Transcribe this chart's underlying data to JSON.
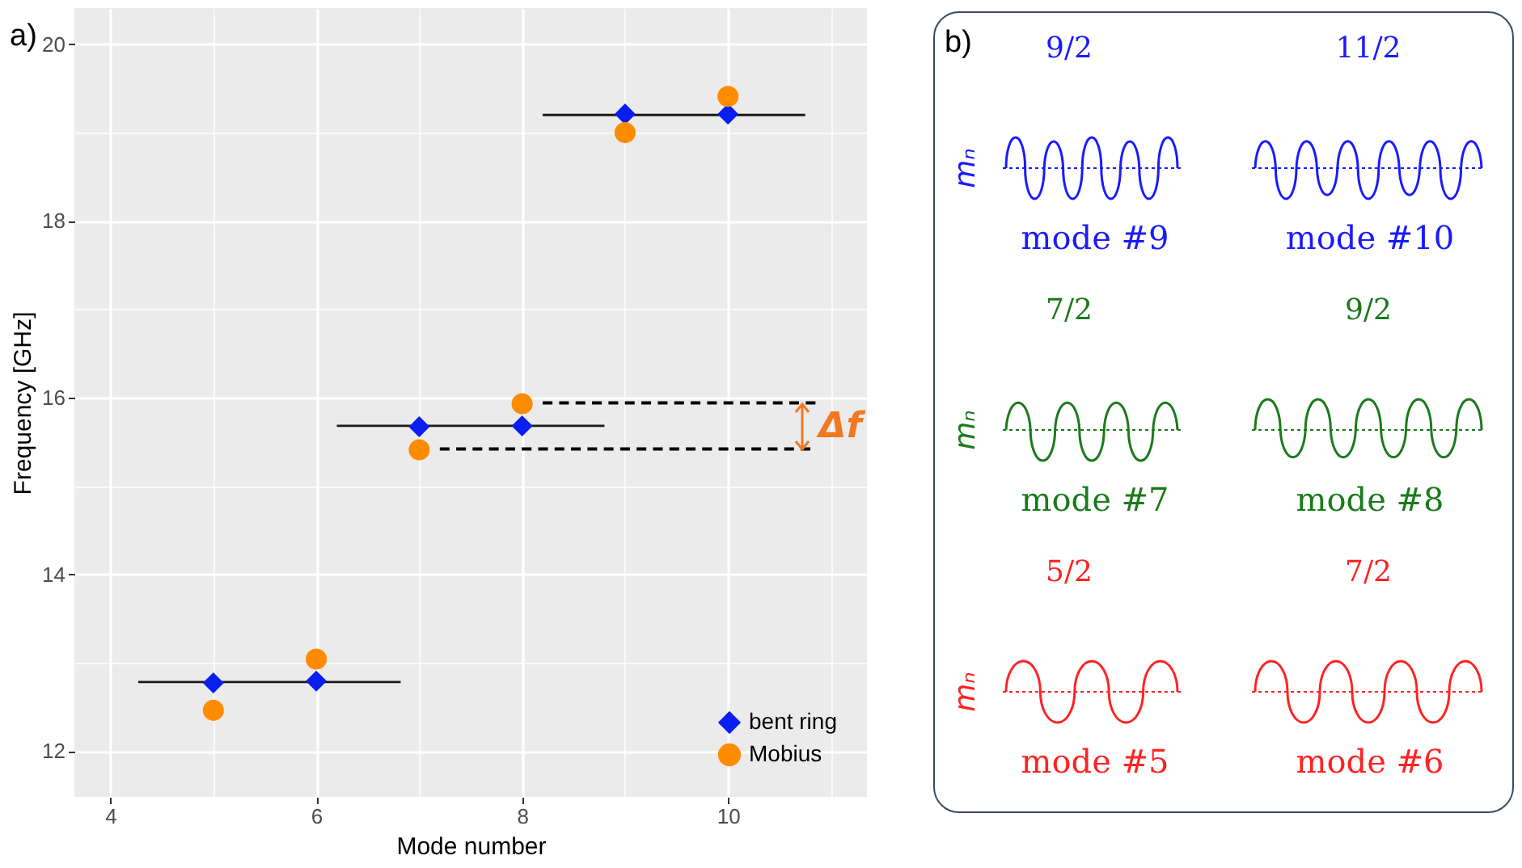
{
  "chart_data": [
    {
      "type": "scatter",
      "title": "a)",
      "xlabel": "Mode number",
      "ylabel": "Frequency [GHz]",
      "xlim": [
        3.65,
        11.35
      ],
      "ylim": [
        11.48,
        20.41
      ],
      "xticks": [
        4,
        {
          "value": 5,
          "label": null
        },
        6,
        {
          "value": 7,
          "label": null
        },
        8,
        {
          "value": 9,
          "label": null
        },
        10,
        {
          "value": 11,
          "label": null
        }
      ],
      "yticks": [
        12,
        {
          "value": 13,
          "label": null
        },
        14,
        {
          "value": 15,
          "label": null
        },
        16,
        {
          "value": 17,
          "label": null
        },
        18,
        {
          "value": 19,
          "label": null
        },
        20
      ],
      "grid": true,
      "legend": "bottom right",
      "series": [
        {
          "name": "bent ring",
          "type": "scatter",
          "marker": "diamond",
          "color": "#0a1ef0",
          "x": [
            5,
            6,
            7,
            8,
            9,
            10
          ],
          "values": [
            12.77,
            12.79,
            15.67,
            15.68,
            19.21,
            19.21
          ]
        },
        {
          "name": "Mobius",
          "type": "scatter",
          "marker": "circle",
          "color": "#ff8c00",
          "x": [
            5,
            6,
            7,
            8,
            9,
            10
          ],
          "values": [
            12.46,
            13.04,
            15.41,
            15.93,
            19.0,
            19.41
          ]
        },
        {
          "type": "line",
          "color": "#1a1a1a",
          "line_style": "solid",
          "x": [
            4.27,
            6.82
          ],
          "values": [
            12.78,
            12.78
          ]
        },
        {
          "type": "line",
          "color": "#1a1a1a",
          "line_style": "solid",
          "x": [
            6.2,
            8.8
          ],
          "values": [
            15.68,
            15.68
          ]
        },
        {
          "type": "line",
          "color": "#1a1a1a",
          "line_style": "solid",
          "x": [
            8.2,
            10.75
          ],
          "values": [
            19.2,
            19.2
          ]
        },
        {
          "type": "line",
          "color": "#000000",
          "line_style": "dashed",
          "x": [
            8.2,
            10.85
          ],
          "values": [
            15.94,
            15.94
          ]
        },
        {
          "type": "line",
          "color": "#000000",
          "line_style": "dashed",
          "x": [
            7.2,
            10.8
          ],
          "values": [
            15.42,
            15.42
          ]
        }
      ],
      "annotations": [
        "Δf"
      ]
    },
    {
      "type": "other",
      "title": "b)",
      "annotations": [
        "9/2",
        "11/2",
        "mₙ",
        "mode #9",
        "mode #10",
        "7/2",
        "9/2",
        "mₙ",
        "mode #7",
        "mode #8",
        "5/2",
        "7/2",
        "mₙ",
        "mode #5",
        "mode #6"
      ]
    }
  ]
}
